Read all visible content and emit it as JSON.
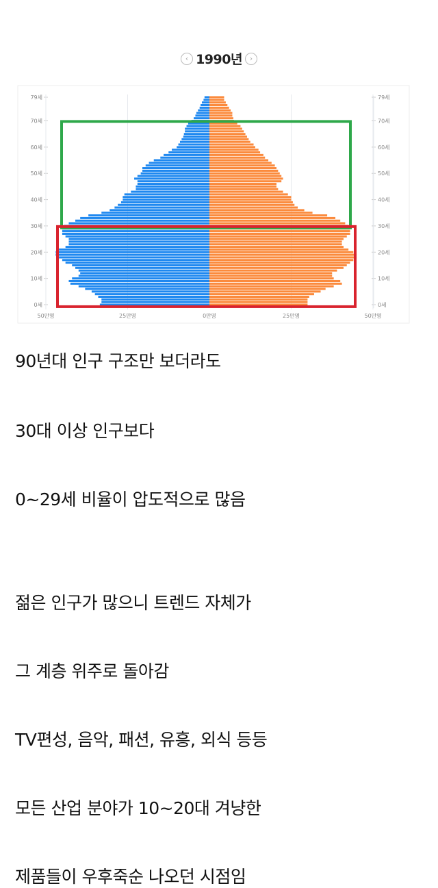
{
  "chart_data": {
    "type": "bar",
    "subtype": "population-pyramid",
    "title": "1990년",
    "prev_label": "‹",
    "next_label": "›",
    "age_ticks": [
      "0세",
      "10세",
      "20세",
      "30세",
      "40세",
      "50세",
      "60세",
      "70세",
      "79세"
    ],
    "x_ticks": [
      "50만명",
      "25만명",
      "0만명",
      "25만명",
      "50만명"
    ],
    "xlim": [
      -50,
      50
    ],
    "unit": "만명",
    "age_range": [
      0,
      79
    ],
    "grid": "vertical",
    "colors": {
      "left": "#1e88f0",
      "right": "#fb8a3c",
      "highlight_upper": "#2ea84a",
      "highlight_lower": "#d9232e"
    },
    "highlights": [
      {
        "color": "green",
        "ages": [
          30,
          69
        ]
      },
      {
        "color": "red",
        "ages": [
          0,
          29
        ]
      }
    ],
    "series": [
      {
        "side": "left",
        "values": [
          33.5,
          33,
          33,
          34,
          35,
          36,
          38,
          40,
          42.5,
          43,
          42,
          40,
          39.5,
          40,
          41,
          42,
          44,
          45,
          46,
          47,
          47,
          46,
          44,
          43,
          43,
          43,
          44,
          45,
          45,
          45,
          44.5,
          43,
          41,
          39.5,
          37,
          33,
          30.5,
          29,
          28,
          27,
          26.5,
          26.5,
          26,
          24,
          22.5,
          22.5,
          22,
          22,
          23,
          22,
          21,
          20.5,
          20.5,
          19.5,
          18.5,
          17,
          15,
          14,
          12.5,
          11.5,
          10,
          9.5,
          9,
          8.5,
          8,
          7.8,
          7.5,
          7.5,
          7,
          6.5,
          5.5,
          4.8,
          4.3,
          4,
          3.5,
          3,
          2.7,
          2.3,
          1.8,
          1.5
        ]
      },
      {
        "side": "right",
        "values": [
          30,
          30,
          30,
          30.5,
          32,
          34,
          35.5,
          38,
          40.5,
          40,
          38,
          37.5,
          37.5,
          39,
          41,
          42,
          43,
          44,
          45,
          45,
          44,
          42.5,
          41,
          40.5,
          40.5,
          41,
          42,
          43,
          43,
          43,
          42.5,
          41.5,
          40,
          38.5,
          36,
          31.5,
          29,
          27,
          26,
          25.5,
          25,
          25,
          24,
          22.5,
          21,
          20.5,
          20.5,
          22,
          22.5,
          22,
          21.5,
          21,
          20.5,
          20,
          19,
          18,
          17,
          16.5,
          15.5,
          15,
          14,
          13.5,
          12.5,
          12,
          11.5,
          11,
          10.5,
          10,
          9.5,
          8.5,
          7.5,
          7.3,
          7,
          7,
          6.5,
          6,
          5.5,
          5,
          4.5,
          4.5
        ]
      }
    ]
  },
  "post": {
    "lines": [
      "90년대 인구 구조만 보더라도",
      "30대 이상 인구보다",
      "0~29세 비율이 압도적으로 많음",
      "젊은 인구가 많으니 트렌드 자체가",
      "그 계층 위주로 돌아감",
      "TV편성, 음악, 패션, 유흥, 외식 등등",
      "모든 산업 분야가 10~20대 겨냥한",
      "제품들이 우후죽순 나오던 시점임"
    ]
  }
}
